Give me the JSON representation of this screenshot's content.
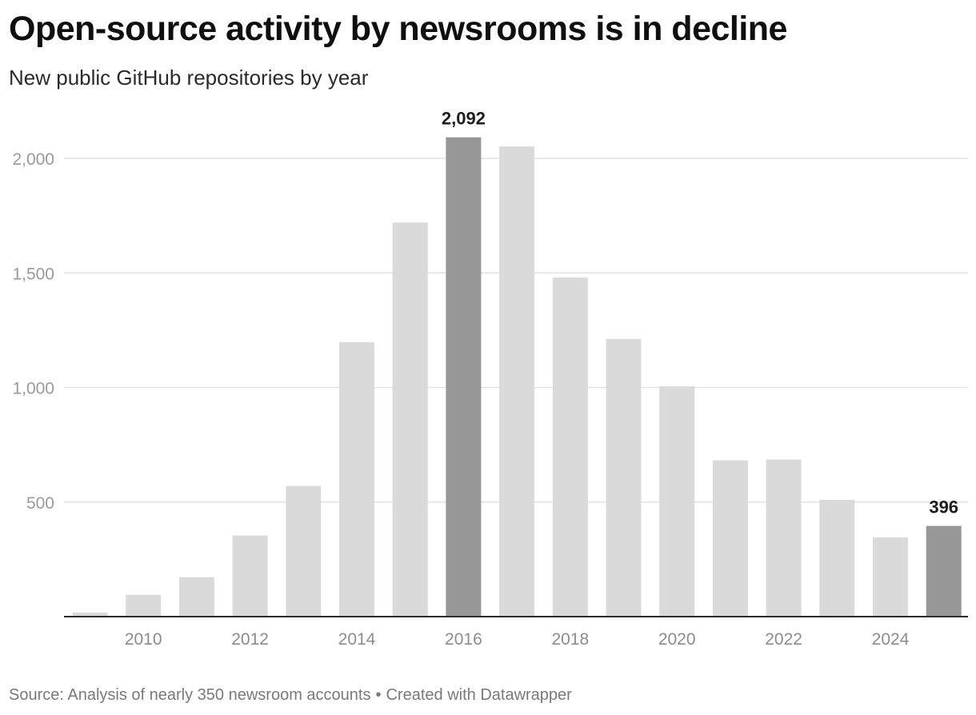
{
  "chart_data": {
    "type": "bar",
    "title": "Open-source activity by newsrooms is in decline",
    "subtitle": "New public GitHub repositories by year",
    "categories": [
      "2009",
      "2010",
      "2011",
      "2012",
      "2013",
      "2014",
      "2015",
      "2016",
      "2017",
      "2018",
      "2019",
      "2020",
      "2021",
      "2022",
      "2023",
      "2024",
      "2025"
    ],
    "values": [
      18,
      95,
      172,
      354,
      570,
      1198,
      1720,
      2092,
      2052,
      1480,
      1212,
      1005,
      682,
      686,
      510,
      346,
      396
    ],
    "highlighted": [
      "2016",
      "2025"
    ],
    "data_labels": [
      {
        "category": "2016",
        "text": "2,092"
      },
      {
        "category": "2025",
        "text": "396"
      }
    ],
    "x_tick_labels": [
      "2010",
      "2012",
      "2014",
      "2016",
      "2018",
      "2020",
      "2022",
      "2024"
    ],
    "y_ticks": [
      500,
      1000,
      1500,
      2000
    ],
    "y_tick_labels": [
      "500",
      "1,000",
      "1,500",
      "2,000"
    ],
    "ylim": [
      0,
      2100
    ],
    "xlabel": "",
    "ylabel": "",
    "grid": true,
    "colors": {
      "bar": "#dadada",
      "highlight": "#979797",
      "grid": "#e2e2e2",
      "axis": "#2b2b2b",
      "tick_text": "#9a9a9a",
      "label_text": "#1d1d1d"
    }
  },
  "footer": {
    "source": "Source: Analysis of nearly 350 newsroom accounts",
    "separator": "•",
    "credit": "Created with Datawrapper"
  }
}
